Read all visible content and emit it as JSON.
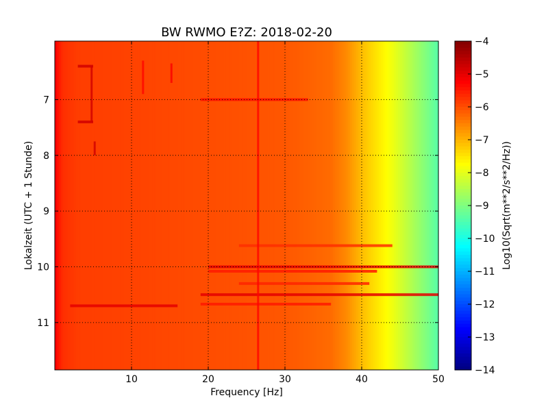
{
  "chart_data": {
    "type": "heatmap",
    "title": "BW RWMO E?Z: 2018-02-20",
    "xlabel": "Frequency [Hz]",
    "ylabel": "Lokalzeit (UTC + 1 Stunde)",
    "colorbar_label": "Log10(Sqrt(m**2/s**2/Hz))",
    "xlim": [
      0,
      50
    ],
    "ylim": [
      11.85,
      5.95
    ],
    "clim": [
      -14,
      -4
    ],
    "colormap": "jet",
    "grid": true,
    "x_ticks": [
      10,
      20,
      30,
      40,
      50
    ],
    "x_tick_labels": [
      "10",
      "20",
      "30",
      "40",
      "50"
    ],
    "y_ticks": [
      7,
      8,
      9,
      10,
      11
    ],
    "y_tick_labels": [
      "7",
      "8",
      "9",
      "10",
      "11"
    ],
    "colorbar_ticks": [
      -4,
      -5,
      -6,
      -7,
      -8,
      -9,
      -10,
      -11,
      -12,
      -13,
      -14
    ],
    "colorbar_tick_labels": [
      "−4",
      "−5",
      "−6",
      "−7",
      "−8",
      "−9",
      "−10",
      "−11",
      "−12",
      "−13",
      "−14"
    ],
    "frequency_profile_hz": [
      0,
      1,
      3,
      10,
      20,
      30,
      36,
      38,
      40,
      42,
      44,
      46,
      48,
      50
    ],
    "frequency_profile_value": [
      -5.2,
      -5.7,
      -5.85,
      -5.9,
      -6.0,
      -6.1,
      -6.3,
      -6.6,
      -7.1,
      -7.5,
      -7.9,
      -8.4,
      -8.9,
      -9.4
    ],
    "features": [
      {
        "kind": "band",
        "time": 10.0,
        "f0": 20,
        "f1": 50,
        "value": -5.0
      },
      {
        "kind": "band",
        "time": 10.5,
        "f0": 19,
        "f1": 50,
        "value": -5.0
      },
      {
        "kind": "band",
        "time": 10.08,
        "f0": 20,
        "f1": 42,
        "value": -5.5
      },
      {
        "kind": "band",
        "time": 10.67,
        "f0": 19,
        "f1": 36,
        "value": -5.5
      },
      {
        "kind": "band",
        "time": 7.0,
        "f0": 19,
        "f1": 33,
        "value": -5.4
      },
      {
        "kind": "band",
        "time": 9.62,
        "f0": 24,
        "f1": 44,
        "value": -5.7
      },
      {
        "kind": "band",
        "time": 10.3,
        "f0": 24,
        "f1": 41,
        "value": -5.6
      },
      {
        "kind": "line",
        "freq": 26.5,
        "t0": 5.95,
        "t1": 11.85,
        "value": -5.3
      },
      {
        "kind": "line",
        "freq": 4.8,
        "t0": 6.4,
        "t1": 7.4,
        "value": -4.8
      },
      {
        "kind": "line",
        "freq": 5.2,
        "t0": 7.75,
        "t1": 8.0,
        "value": -4.8
      },
      {
        "kind": "band",
        "time": 6.4,
        "f0": 3,
        "f1": 5,
        "value": -4.8
      },
      {
        "kind": "band",
        "time": 7.4,
        "f0": 3,
        "f1": 5,
        "value": -4.8
      },
      {
        "kind": "band",
        "time": 10.7,
        "f0": 2,
        "f1": 16,
        "value": -5.0
      },
      {
        "kind": "line",
        "freq": 15.2,
        "t0": 6.35,
        "t1": 6.7,
        "value": -5.2
      },
      {
        "kind": "line",
        "freq": 11.5,
        "t0": 6.3,
        "t1": 6.9,
        "value": -5.3
      }
    ]
  }
}
